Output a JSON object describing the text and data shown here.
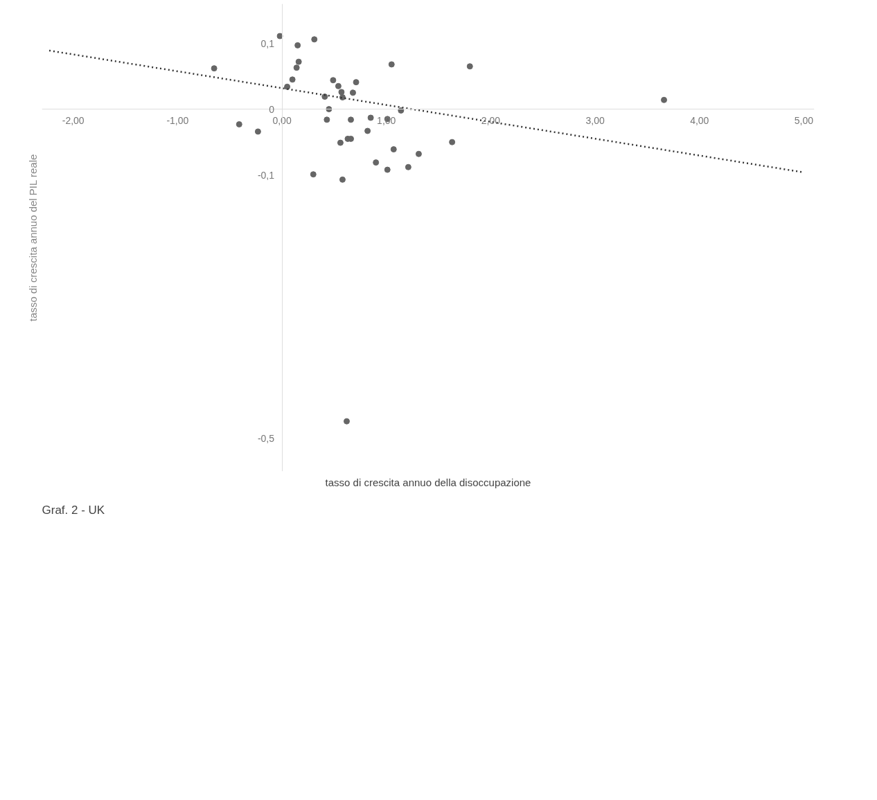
{
  "chart_data": {
    "type": "scatter",
    "xlabel": "tasso di crescita annuo della disoccupazione",
    "ylabel": "tasso di crescita annuo del PIL reale",
    "annotations": [
      "Graf. 2 - UK"
    ],
    "xlim": [
      -2.3,
      5.1
    ],
    "ylim": [
      -0.55,
      0.16
    ],
    "xticks": [
      {
        "value": -2,
        "label": "-2,00"
      },
      {
        "value": -1,
        "label": "-1,00"
      },
      {
        "value": 0,
        "label": "0,00"
      },
      {
        "value": 1,
        "label": "1,00"
      },
      {
        "value": 2,
        "label": "2,00"
      },
      {
        "value": 3,
        "label": "3,00"
      },
      {
        "value": 4,
        "label": "4,00"
      },
      {
        "value": 5,
        "label": "5,00"
      }
    ],
    "yticks": [
      {
        "value": 0.1,
        "label": "0,1"
      },
      0,
      {
        "value": -0.1,
        "label": "-0,1"
      },
      {
        "value": -0.5,
        "label": "-0,5"
      }
    ],
    "grid": false,
    "series": [
      {
        "color": "#666666",
        "marker": "circle",
        "x": [
          -0.02,
          0.15,
          0.31,
          -0.65,
          0.16,
          0.14,
          0.1,
          0.05,
          1.05,
          0.49,
          0.54,
          0.71,
          0.57,
          0.68,
          0.58,
          0.41,
          0.45,
          1.14,
          0.43,
          0.66,
          0.85,
          1.01,
          -0.41,
          -0.23,
          0.82,
          0.63,
          0.66,
          0.56,
          1.07,
          1.31,
          0.9,
          1.01,
          1.21,
          0.3,
          0.58,
          1.8,
          1.63,
          3.66,
          0.62
        ],
        "values": [
          0.111,
          0.097,
          0.106,
          0.062,
          0.072,
          0.063,
          0.045,
          0.034,
          0.068,
          0.044,
          0.035,
          0.041,
          0.026,
          0.025,
          0.018,
          0.019,
          0.0,
          -0.002,
          -0.016,
          -0.016,
          -0.013,
          -0.015,
          -0.023,
          -0.034,
          -0.033,
          -0.045,
          -0.045,
          -0.051,
          -0.061,
          -0.068,
          -0.081,
          -0.092,
          -0.088,
          -0.099,
          -0.107,
          0.065,
          -0.05,
          0.014,
          -0.474
        ]
      },
      {
        "type": "line",
        "color": "#333333",
        "line_style": "dotted",
        "x": [
          -2.23,
          5.0
        ],
        "values": [
          0.089,
          -0.096
        ]
      }
    ]
  }
}
